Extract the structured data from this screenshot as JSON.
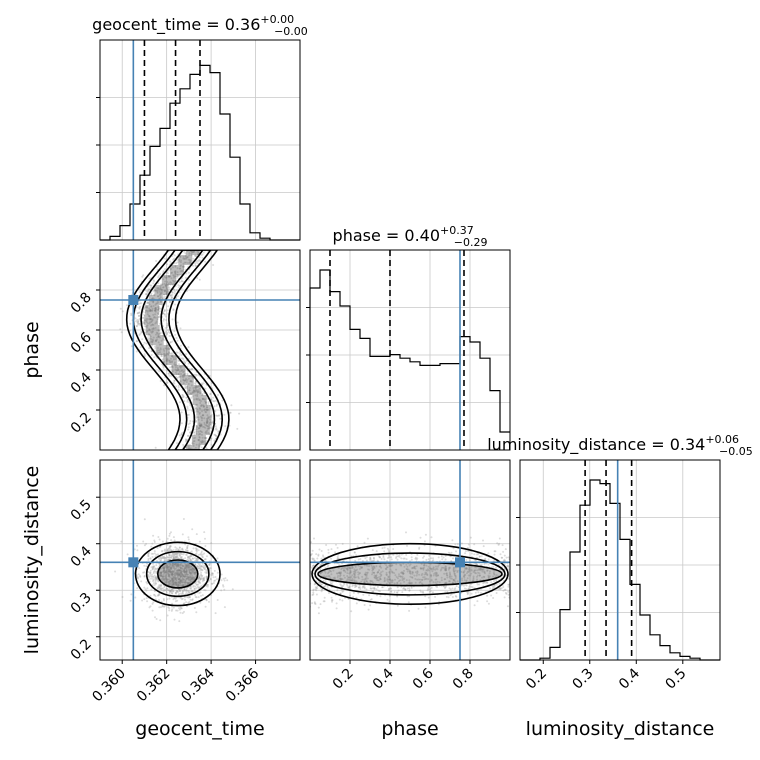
{
  "chart_data": {
    "type": "corner",
    "parameters": [
      "geocent_time",
      "phase",
      "luminosity_distance"
    ],
    "axis_labels": [
      "geocent_time",
      "phase",
      "luminosity_distance"
    ],
    "truth": [
      0.3605,
      0.75,
      0.36
    ],
    "truth_color": "#4682b4",
    "ranges": [
      [
        0.359,
        0.368
      ],
      [
        0.0,
        1.0
      ],
      [
        0.15,
        0.58
      ]
    ],
    "diagonal_titles": [
      {
        "name": "geocent_time",
        "median": "0.36",
        "plus": "+0.00",
        "minus": "−0.00"
      },
      {
        "name": "phase",
        "median": "0.40",
        "plus": "+0.37",
        "minus": "−0.29"
      },
      {
        "name": "luminosity_distance",
        "median": "0.34",
        "plus": "+0.06",
        "minus": "−0.05"
      }
    ],
    "quantiles": [
      [
        0.361,
        0.3624,
        0.3635
      ],
      [
        0.1,
        0.4,
        0.77
      ],
      [
        0.29,
        0.335,
        0.39
      ]
    ],
    "ticks": {
      "geocent_time": {
        "values": [
          0.36,
          0.362,
          0.364,
          0.366
        ],
        "labels": [
          "0.360",
          "0.362",
          "0.364",
          "0.366"
        ]
      },
      "phase": {
        "values": [
          0.2,
          0.4,
          0.6,
          0.8
        ],
        "labels": [
          "0.2",
          "0.4",
          "0.6",
          "0.8"
        ]
      },
      "luminosity_distance": {
        "values": [
          0.2,
          0.3,
          0.4,
          0.5
        ],
        "labels": [
          "0.2",
          "0.3",
          "0.4",
          "0.5"
        ]
      }
    },
    "histograms": [
      {
        "edges_start": 0.359,
        "bin_width": 0.00045,
        "counts": [
          0.0,
          0.02,
          0.08,
          0.2,
          0.36,
          0.52,
          0.62,
          0.76,
          0.84,
          0.92,
          0.97,
          0.93,
          0.7,
          0.46,
          0.2,
          0.04,
          0.01,
          0.0,
          0.0,
          0.0
        ]
      },
      {
        "edges_start": 0.0,
        "bin_width": 0.05,
        "counts": [
          0.9,
          1.0,
          0.88,
          0.8,
          0.67,
          0.62,
          0.52,
          0.52,
          0.53,
          0.51,
          0.49,
          0.47,
          0.47,
          0.48,
          0.48,
          0.63,
          0.6,
          0.51,
          0.33,
          0.1
        ]
      },
      {
        "edges_start": 0.15,
        "bin_width": 0.0215,
        "counts": [
          0.0,
          0.0,
          0.01,
          0.07,
          0.28,
          0.6,
          0.86,
          1.0,
          0.98,
          0.87,
          0.67,
          0.42,
          0.25,
          0.14,
          0.08,
          0.04,
          0.02,
          0.01,
          0.0,
          0.0
        ]
      }
    ],
    "grid": true,
    "grid_color": "#c8c8c8",
    "title_color": "#000000"
  }
}
